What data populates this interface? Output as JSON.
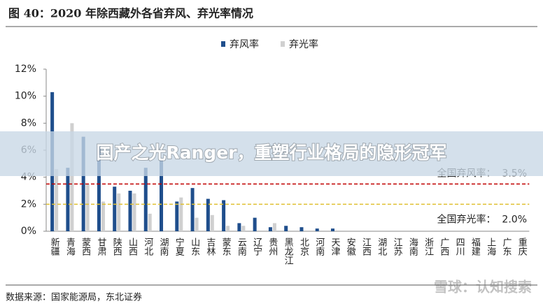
{
  "chart_data": {
    "type": "bar",
    "title": "图 40：2020 年除西藏外各省弃风、弃光率情况",
    "source": "数据来源：国家能源局，东北证券",
    "categories": [
      "新疆",
      "青海",
      "蒙西",
      "甘肃",
      "陕西",
      "山西",
      "河北",
      "湖南",
      "宁夏",
      "山东",
      "吉林",
      "蒙东",
      "云南",
      "辽宁",
      "贵州",
      "黑龙江",
      "北京",
      "河南",
      "天津",
      "安徽",
      "江西",
      "湖北",
      "江苏",
      "海南",
      "浙江",
      "广西",
      "四川",
      "福建",
      "上海",
      "广东",
      "重庆"
    ],
    "series": [
      {
        "name": "弃风率",
        "color": "#1f4e8c",
        "values": [
          10.3,
          4.7,
          7.0,
          6.4,
          3.3,
          3.0,
          4.7,
          5.3,
          2.2,
          3.2,
          2.4,
          2.3,
          0.6,
          1.0,
          0.3,
          0.4,
          0.3,
          0.2,
          0.2,
          0,
          0,
          0,
          0,
          0,
          0,
          0,
          0,
          0,
          0,
          0,
          0
        ]
      },
      {
        "name": "弃光率",
        "color": "#d0d0d0",
        "values": [
          4.6,
          8.0,
          3.5,
          2.2,
          2.8,
          2.8,
          1.3,
          0,
          2.5,
          1.0,
          1.2,
          0.4,
          0.4,
          0,
          0.6,
          0,
          0,
          0,
          0,
          0,
          0,
          0,
          0,
          0,
          0,
          0,
          0,
          0,
          0,
          0,
          0
        ]
      }
    ],
    "ylim": [
      0,
      12
    ],
    "yticks": [
      {
        "value": 0,
        "label": "0%"
      },
      {
        "value": 2,
        "label": "2%"
      },
      {
        "value": 4,
        "label": "4%"
      },
      {
        "value": 6,
        "label": "6%"
      },
      {
        "value": 8,
        "label": "8%"
      },
      {
        "value": 10,
        "label": "10%"
      },
      {
        "value": 12,
        "label": "12%"
      }
    ],
    "reference_lines": [
      {
        "value": 3.5,
        "label": "全国弃风率：  3.5%",
        "color": "#c00000"
      },
      {
        "value": 2.0,
        "label": "全国弃光率：  2.0%",
        "color": "#e0c030"
      }
    ],
    "legend": "top"
  },
  "overlay": {
    "banner": "国产之光Ranger，重塑行业格局的隐形冠军",
    "watermark": "雪球：认知搜索"
  }
}
